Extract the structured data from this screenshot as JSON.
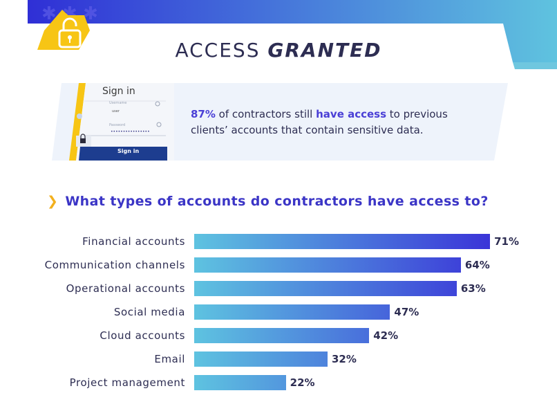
{
  "header": {
    "title_light": "ACCESS",
    "title_bold": "GRANTED",
    "icon": "unlocked-padlock-icon",
    "colors": {
      "gradient_start": "#2f2fd6",
      "gradient_end": "#5fc3df",
      "accent_yellow": "#f7c515"
    }
  },
  "stat": {
    "phone": {
      "title": "Sign in",
      "button": "Sign in"
    },
    "highlight_pct": "87%",
    "text_a": " of contractors still ",
    "highlight_phrase": "have access",
    "text_b": " to previous clients’ accounts that contain sensitive data."
  },
  "question": {
    "chevron": "❯",
    "text": "What types of accounts do contractors have access to?"
  },
  "chart_data": {
    "type": "bar",
    "orientation": "horizontal",
    "title": "What types of accounts do contractors have access to?",
    "categories": [
      "Financial accounts",
      "Communication channels",
      "Operational accounts",
      "Social media",
      "Cloud accounts",
      "Email",
      "Project management"
    ],
    "values": [
      71,
      64,
      63,
      47,
      42,
      32,
      22
    ],
    "value_labels": [
      "71%",
      "64%",
      "63%",
      "47%",
      "42%",
      "32%",
      "22%"
    ],
    "xlim": [
      0,
      100
    ],
    "grid": false,
    "colors": {
      "bar_start": "#5ec3e0",
      "bar_end": "#3a34d8"
    }
  }
}
